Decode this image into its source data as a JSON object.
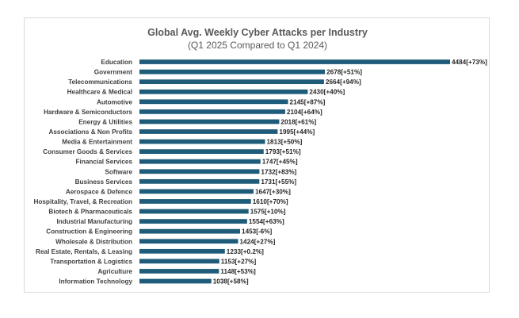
{
  "chart_data": {
    "type": "bar",
    "orientation": "horizontal",
    "title": "Global Avg. Weekly Cyber Attacks per Industry",
    "subtitle": "(Q1 2025 Compared to Q1 2024)",
    "bar_color": "#1f5c7a",
    "categories": [
      "Education",
      "Government",
      "Telecommunications",
      "Healthcare & Medical",
      "Automotive",
      "Hardware & Semiconductors",
      "Energy & Utilities",
      "Associations & Non Profits",
      "Media & Entertainment",
      "Consumer Goods & Services",
      "Financial Services",
      "Software",
      "Business Services",
      "Aerospace & Defence",
      "Hospitality, Travel, & Recreation",
      "Biotech & Pharmaceuticals",
      "Industrial Manufacturing",
      "Construction & Engineering",
      "Wholesale & Distribution",
      "Real Estate, Rentals, & Leasing",
      "Transportation & Logistics",
      "Agriculture",
      "Information Technology"
    ],
    "values": [
      4484,
      2678,
      2664,
      2430,
      2145,
      2104,
      2018,
      1995,
      1813,
      1793,
      1747,
      1732,
      1731,
      1647,
      1610,
      1575,
      1554,
      1453,
      1424,
      1233,
      1153,
      1148,
      1038
    ],
    "changes": [
      "+73%",
      "+51%",
      "+94%",
      "+40%",
      "+87%",
      "+64%",
      "+61%",
      "+44%",
      "+50%",
      "+51%",
      "+45%",
      "+83%",
      "+55%",
      "+30%",
      "+70%",
      "+10%",
      "+63%",
      "-6%",
      "+27%",
      "+0.2%",
      "+27%",
      "+53%",
      "+58%"
    ],
    "xlim": [
      0,
      4484
    ],
    "grid": false,
    "legend": "none",
    "xaxis_visible": false
  }
}
